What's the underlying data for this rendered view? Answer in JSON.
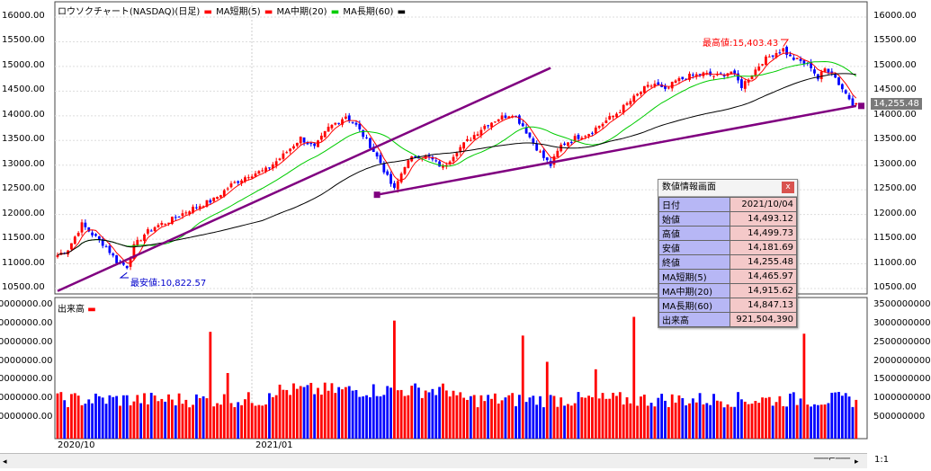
{
  "legend": {
    "title": "ロウソクチャート(NASDAQ)(日足)",
    "ma_short": "MA短期(5)",
    "ma_mid": "MA中期(20)",
    "ma_long": "MA長期(60)"
  },
  "volume_legend": "出来高",
  "price_badge": "14,255.48",
  "annotations": {
    "high": "最高値:15,403.43",
    "low": "最安値:10,822.57"
  },
  "x_labels": [
    "2020/10",
    "2021/01"
  ],
  "price_axis": [
    "16000.00",
    "15500.00",
    "15000.00",
    "14500.00",
    "14000.00",
    "13500.00",
    "13000.00",
    "12500.00",
    "12000.00",
    "11500.00",
    "11000.00",
    "10500.00"
  ],
  "volume_axis_right": [
    "3500000000",
    "3000000000",
    "2500000000",
    "2000000000",
    "1500000000",
    "1000000000",
    "500000000"
  ],
  "volume_axis_left": [
    "0000000.00",
    "0000000.00",
    "0000000.00",
    "0000000.00",
    "0000000.00",
    "0000000.00",
    "0000000.00"
  ],
  "data_window": {
    "title": "数値情報画面",
    "close_glyph": "x",
    "rows": [
      {
        "k": "日付",
        "v": "2021/10/04"
      },
      {
        "k": "始値",
        "v": "14,493.12"
      },
      {
        "k": "高値",
        "v": "14,499.73"
      },
      {
        "k": "安値",
        "v": "14,181.69"
      },
      {
        "k": "終値",
        "v": "14,255.48"
      },
      {
        "k": "MA短期(5)",
        "v": "14,465.97"
      },
      {
        "k": "MA中期(20)",
        "v": "14,915.62"
      },
      {
        "k": "MA長期(60)",
        "v": "14,847.13"
      },
      {
        "k": "出来高",
        "v": "921,504,390"
      }
    ]
  },
  "zoom_label": "1:1",
  "scroll_left_glyph": "◂",
  "scroll_right_glyph": "▸",
  "colors": {
    "up": "#ff0000",
    "down": "#0000ff",
    "ma_short": "#ff0000",
    "ma_mid": "#00cc00",
    "ma_long": "#000000",
    "trend": "#800080"
  },
  "chart_data": {
    "type": "candlestick",
    "anchors": [
      {
        "i": 0,
        "c": 11180
      },
      {
        "i": 3,
        "c": 11300
      },
      {
        "i": 5,
        "c": 11550
      },
      {
        "i": 7,
        "c": 11800
      },
      {
        "i": 10,
        "c": 11600
      },
      {
        "i": 14,
        "c": 11350
      },
      {
        "i": 17,
        "c": 11050
      },
      {
        "i": 20,
        "c": 10950
      },
      {
        "i": 22,
        "c": 11350
      },
      {
        "i": 25,
        "c": 11600
      },
      {
        "i": 28,
        "c": 11750
      },
      {
        "i": 33,
        "c": 11900
      },
      {
        "i": 38,
        "c": 12100
      },
      {
        "i": 45,
        "c": 12300
      },
      {
        "i": 50,
        "c": 12600
      },
      {
        "i": 55,
        "c": 12800
      },
      {
        "i": 60,
        "c": 12900
      },
      {
        "i": 65,
        "c": 13200
      },
      {
        "i": 70,
        "c": 13550
      },
      {
        "i": 74,
        "c": 13350
      },
      {
        "i": 78,
        "c": 13750
      },
      {
        "i": 83,
        "c": 14000
      },
      {
        "i": 86,
        "c": 13800
      },
      {
        "i": 90,
        "c": 13400
      },
      {
        "i": 93,
        "c": 13050
      },
      {
        "i": 95,
        "c": 12750
      },
      {
        "i": 97,
        "c": 12500
      },
      {
        "i": 100,
        "c": 13000
      },
      {
        "i": 103,
        "c": 13200
      },
      {
        "i": 107,
        "c": 13150
      },
      {
        "i": 111,
        "c": 12950
      },
      {
        "i": 115,
        "c": 13300
      },
      {
        "i": 119,
        "c": 13550
      },
      {
        "i": 123,
        "c": 13800
      },
      {
        "i": 127,
        "c": 13950
      },
      {
        "i": 131,
        "c": 14050
      },
      {
        "i": 134,
        "c": 13800
      },
      {
        "i": 137,
        "c": 13450
      },
      {
        "i": 140,
        "c": 13150
      },
      {
        "i": 142,
        "c": 13000
      },
      {
        "i": 145,
        "c": 13400
      },
      {
        "i": 149,
        "c": 13550
      },
      {
        "i": 153,
        "c": 13650
      },
      {
        "i": 157,
        "c": 13850
      },
      {
        "i": 161,
        "c": 14050
      },
      {
        "i": 165,
        "c": 14300
      },
      {
        "i": 169,
        "c": 14550
      },
      {
        "i": 172,
        "c": 14650
      },
      {
        "i": 175,
        "c": 14500
      },
      {
        "i": 178,
        "c": 14700
      },
      {
        "i": 182,
        "c": 14800
      },
      {
        "i": 186,
        "c": 14850
      },
      {
        "i": 190,
        "c": 14800
      },
      {
        "i": 194,
        "c": 14900
      },
      {
        "i": 197,
        "c": 14600
      },
      {
        "i": 200,
        "c": 14850
      },
      {
        "i": 203,
        "c": 15100
      },
      {
        "i": 206,
        "c": 15250
      },
      {
        "i": 209,
        "c": 15350
      },
      {
        "i": 211,
        "c": 15180
      },
      {
        "i": 214,
        "c": 15100
      },
      {
        "i": 217,
        "c": 15000
      },
      {
        "i": 219,
        "c": 14750
      },
      {
        "i": 221,
        "c": 14950
      },
      {
        "i": 223,
        "c": 14900
      },
      {
        "i": 225,
        "c": 14650
      },
      {
        "i": 227,
        "c": 14450
      },
      {
        "i": 229,
        "c": 14255
      }
    ],
    "volume_spikes": [
      {
        "i": 44,
        "v": 2800000000
      },
      {
        "i": 97,
        "v": 3100000000
      },
      {
        "i": 134,
        "v": 2700000000
      },
      {
        "i": 166,
        "v": 3200000000
      },
      {
        "i": 49,
        "v": 1700000000
      },
      {
        "i": 141,
        "v": 2000000000
      },
      {
        "i": 155,
        "v": 1800000000
      },
      {
        "i": 215,
        "v": 2750000000
      }
    ],
    "price_range": [
      10400,
      16100
    ],
    "volume_range": [
      0,
      3600000000
    ],
    "high_point": {
      "i": 209,
      "price": 15403.43
    },
    "low_point": {
      "i": 20,
      "price": 10822.57
    },
    "trendlines": [
      {
        "from": {
          "i": 0,
          "p": 10450
        },
        "to": {
          "i": 142,
          "p": 14970
        }
      },
      {
        "from": {
          "i": 92,
          "p": 12400
        },
        "to": {
          "i": 230,
          "p": 14200
        }
      }
    ]
  }
}
